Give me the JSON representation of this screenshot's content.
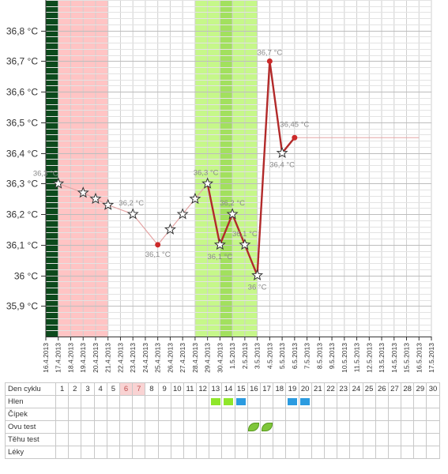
{
  "chart_data": {
    "type": "line",
    "yunit": " °C",
    "ylim": [
      35.8,
      36.9
    ],
    "yticks": [
      "35,9 °C",
      "36 °C",
      "36,1 °C",
      "36,2 °C",
      "36,3 °C",
      "36,4 °C",
      "36,5 °C",
      "36,6 °C",
      "36,7 °C",
      "36,8 °C"
    ],
    "x": [
      "16.4.2013",
      "17.4.2013",
      "18.4.2013",
      "19.4.2013",
      "20.4.2013",
      "21.4.2013",
      "22.4.2013",
      "23.4.2013",
      "24.4.2013",
      "25.4.2013",
      "26.4.2013",
      "27.4.2013",
      "28.4.2013",
      "29.4.2013",
      "30.4.2013",
      "1.5.2013",
      "2.5.2013",
      "3.5.2013",
      "4.5.2013",
      "5.5.2013",
      "6.5.2013",
      "7.5.2013",
      "8.5.2013",
      "9.5.2013",
      "10.5.2013",
      "11.5.2013",
      "12.5.2013",
      "13.5.2013",
      "14.5.2013",
      "15.5.2013",
      "16.5.2013",
      "17.5.2013"
    ],
    "points": [
      {
        "date": "17.4.2013",
        "value": 36.3,
        "marker": "star",
        "label": "36,3 °C"
      },
      {
        "date": "19.4.2013",
        "value": 36.27,
        "marker": "star",
        "label": ""
      },
      {
        "date": "20.4.2013",
        "value": 36.25,
        "marker": "star",
        "label": ""
      },
      {
        "date": "21.4.2013",
        "value": 36.23,
        "marker": "star",
        "label": ""
      },
      {
        "date": "23.4.2013",
        "value": 36.2,
        "marker": "star",
        "label": "36,2 °C"
      },
      {
        "date": "25.4.2013",
        "value": 36.1,
        "marker": "dot",
        "label": "36,1 °C"
      },
      {
        "date": "26.4.2013",
        "value": 36.15,
        "marker": "star",
        "label": ""
      },
      {
        "date": "27.4.2013",
        "value": 36.2,
        "marker": "star",
        "label": ""
      },
      {
        "date": "28.4.2013",
        "value": 36.25,
        "marker": "star",
        "label": ""
      },
      {
        "date": "29.4.2013",
        "value": 36.3,
        "marker": "star",
        "label": "36,3 °C"
      },
      {
        "date": "30.4.2013",
        "value": 36.1,
        "marker": "star",
        "label": "36,1 °C"
      },
      {
        "date": "1.5.2013",
        "value": 36.2,
        "marker": "star",
        "label": "36,2 °C"
      },
      {
        "date": "2.5.2013",
        "value": 36.1,
        "marker": "star",
        "label": "36,1 °C"
      },
      {
        "date": "3.5.2013",
        "value": 36.0,
        "marker": "star",
        "label": "36 °C"
      },
      {
        "date": "4.5.2013",
        "value": 36.7,
        "marker": "dot",
        "label": "36,7 °C"
      },
      {
        "date": "5.5.2013",
        "value": 36.4,
        "marker": "star",
        "label": "36,4 °C"
      },
      {
        "date": "6.5.2013",
        "value": 36.45,
        "marker": "dot",
        "label": "36,45 °C"
      }
    ],
    "bold_segments": [
      [
        "29.4.2013",
        "6.5.2013"
      ]
    ],
    "projection": {
      "from": "6.5.2013",
      "to": "16.5.2013",
      "value": 36.45
    },
    "bands": [
      {
        "from": "16.4.2013",
        "to": "17.4.2013",
        "color": "#0c4a1c"
      },
      {
        "from": "17.4.2013",
        "to": "21.4.2013",
        "color": "#ffc4c4"
      },
      {
        "from": "28.4.2013",
        "to": "3.5.2013",
        "color": "#c6f78a"
      },
      {
        "from": "30.4.2013",
        "to": "1.5.2013",
        "color": "#a2e05e"
      }
    ],
    "colors": {
      "line_thin": "#e5a5a5",
      "line_bold": "#b22a2a",
      "dot": "#cc2a2a",
      "grid": "#cfcfcf"
    }
  },
  "cycle_table": {
    "rows": [
      {
        "label": "Den cyklu"
      },
      {
        "label": "Hlen"
      },
      {
        "label": "Čípek"
      },
      {
        "label": "Ovu test"
      },
      {
        "label": "Těhu test"
      },
      {
        "label": "Léky"
      }
    ],
    "days": [
      "1",
      "2",
      "3",
      "4",
      "5",
      "6",
      "7",
      "8",
      "9",
      "10",
      "11",
      "12",
      "13",
      "14",
      "15",
      "16",
      "17",
      "18",
      "19",
      "20",
      "21",
      "22",
      "23",
      "24",
      "25",
      "26",
      "27",
      "28",
      "29",
      "30"
    ],
    "highlighted_days": [
      "6",
      "7"
    ],
    "hlen_marks": [
      {
        "day": "13",
        "color": "#8fe62a"
      },
      {
        "day": "14",
        "color": "#8fe62a"
      },
      {
        "day": "15",
        "color": "#2b9be0"
      },
      {
        "day": "19",
        "color": "#2b9be0"
      },
      {
        "day": "20",
        "color": "#2b9be0"
      }
    ],
    "ovu_marks": [
      "16",
      "17"
    ]
  }
}
